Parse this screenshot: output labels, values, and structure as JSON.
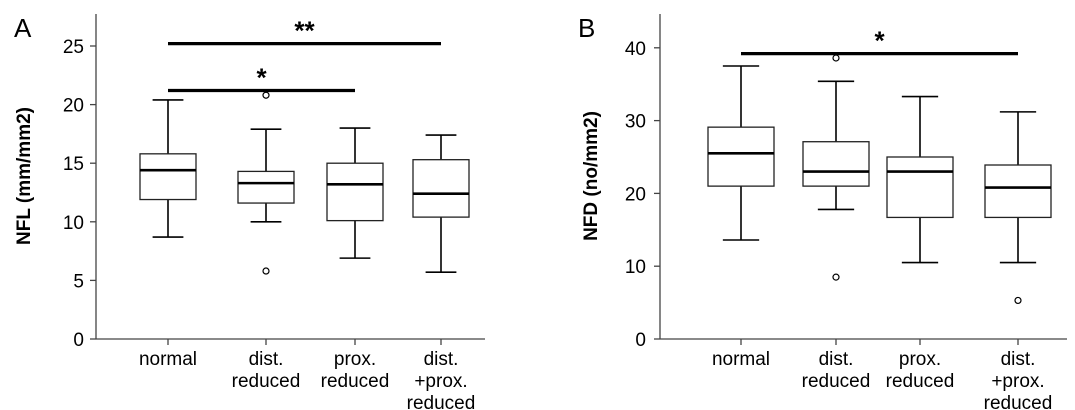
{
  "chart_data": [
    {
      "type": "box",
      "panel_letter": "A",
      "ylabel": "NFL (mm/mm2)",
      "ylim": [
        0,
        27
      ],
      "yticks": [
        0,
        5,
        10,
        15,
        20,
        25
      ],
      "categories": [
        "normal",
        "dist.\nreduced",
        "prox.\nreduced",
        "dist.\n+prox.\nreduced"
      ],
      "boxes": [
        {
          "min": 8.7,
          "q1": 11.9,
          "median": 14.4,
          "q3": 15.8,
          "max": 20.4,
          "outliers": []
        },
        {
          "min": 10.0,
          "q1": 11.6,
          "median": 13.3,
          "q3": 14.3,
          "max": 17.9,
          "outliers": [
            20.8,
            5.8
          ]
        },
        {
          "min": 6.9,
          "q1": 10.1,
          "median": 13.2,
          "q3": 15.0,
          "max": 18.0,
          "outliers": []
        },
        {
          "min": 5.7,
          "q1": 10.4,
          "median": 12.4,
          "q3": 15.3,
          "max": 17.4,
          "outliers": []
        }
      ],
      "significance": [
        {
          "from": 0,
          "to": 2,
          "y": 21.2,
          "label": "*"
        },
        {
          "from": 0,
          "to": 3,
          "y": 25.2,
          "label": "**"
        }
      ],
      "grid": false
    },
    {
      "type": "box",
      "panel_letter": "B",
      "ylabel": "NFD (no/mm2)",
      "ylim": [
        0,
        44
      ],
      "yticks": [
        0,
        10,
        20,
        30,
        40
      ],
      "categories": [
        "normal",
        "dist.\nreduced",
        "prox.\nreduced",
        "dist.\n+prox.\nreduced"
      ],
      "boxes": [
        {
          "min": 13.6,
          "q1": 21.0,
          "median": 25.5,
          "q3": 29.1,
          "max": 37.5,
          "outliers": []
        },
        {
          "min": 17.8,
          "q1": 21.0,
          "median": 23.0,
          "q3": 27.1,
          "max": 35.4,
          "outliers": [
            38.6,
            8.5
          ]
        },
        {
          "min": 10.5,
          "q1": 16.7,
          "median": 23.0,
          "q3": 25.0,
          "max": 33.3,
          "outliers": []
        },
        {
          "min": 10.5,
          "q1": 16.7,
          "median": 20.8,
          "q3": 23.9,
          "max": 31.2,
          "outliers": [
            5.3
          ]
        }
      ],
      "significance": [
        {
          "from": 0,
          "to": 3,
          "y": 39.2,
          "label": "*"
        }
      ],
      "grid": false
    }
  ]
}
